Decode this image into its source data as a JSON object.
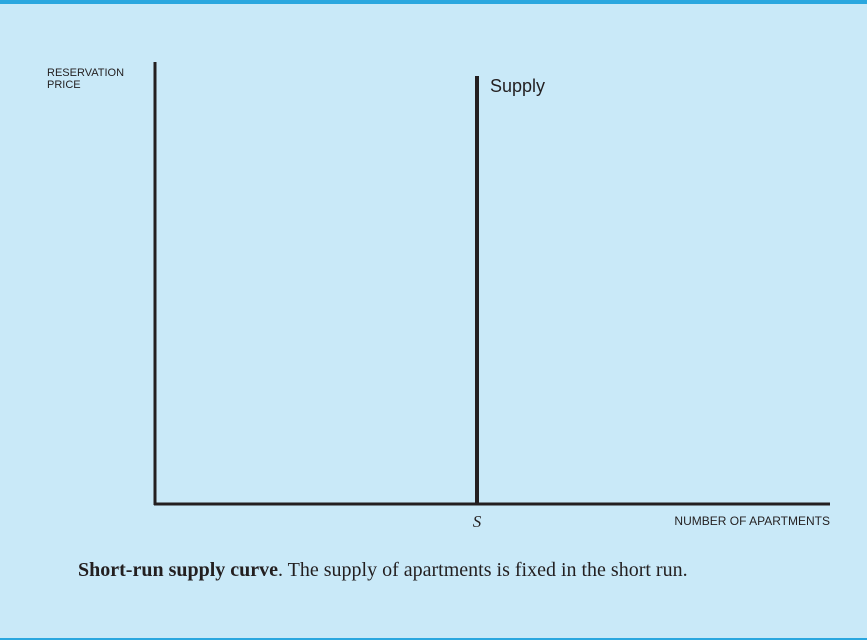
{
  "figure": {
    "y_axis_label": [
      "RESERVATION",
      "PRICE"
    ],
    "curve_label": "Supply",
    "x_marker": "S",
    "x_axis_label": "NUMBER OF APARTMENTS",
    "caption": {
      "title": "Short-run supply curve",
      "text": ".  The supply of apartments is fixed in the short run."
    }
  }
}
